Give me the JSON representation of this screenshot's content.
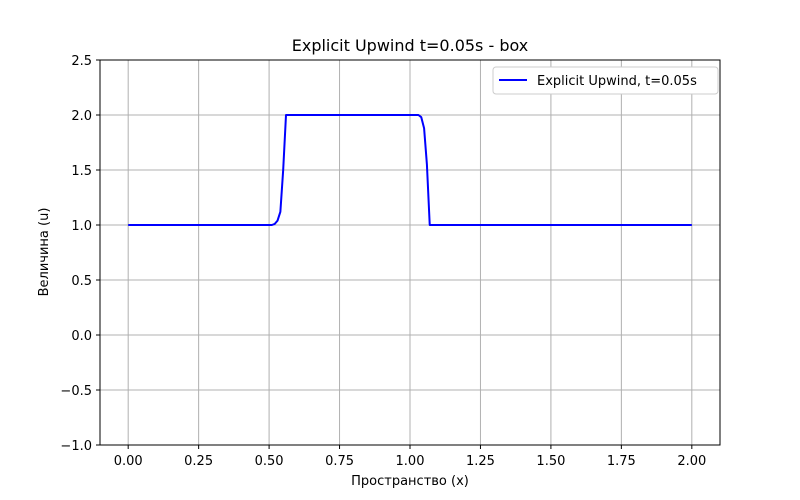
{
  "chart_data": {
    "type": "line",
    "title": "Explicit Upwind t=0.05s - box",
    "xlabel": "Пространство (x)",
    "ylabel": "Величина (u)",
    "xlim": [
      -0.1,
      2.1
    ],
    "ylim": [
      -1.0,
      2.5
    ],
    "xticks": [
      0.0,
      0.25,
      0.5,
      0.75,
      1.0,
      1.25,
      1.5,
      1.75,
      2.0
    ],
    "xtick_labels": [
      "0.00",
      "0.25",
      "0.50",
      "0.75",
      "1.00",
      "1.25",
      "1.50",
      "1.75",
      "2.00"
    ],
    "yticks": [
      -1.0,
      -0.5,
      0.0,
      0.5,
      1.0,
      1.5,
      2.0,
      2.5
    ],
    "ytick_labels": [
      "−1.0",
      "−0.5",
      "0.0",
      "0.5",
      "1.0",
      "1.5",
      "2.0",
      "2.5"
    ],
    "grid": true,
    "legend_position": "top-right",
    "series": [
      {
        "name": "Explicit Upwind, t=0.05s",
        "color": "#0000ff",
        "x": [
          0.0,
          0.5,
          0.51,
          0.52,
          0.53,
          0.54,
          0.55,
          0.56,
          0.6,
          1.0,
          1.03,
          1.04,
          1.05,
          1.06,
          1.07,
          1.1,
          2.0
        ],
        "y": [
          1.0,
          1.0,
          1.0,
          1.01,
          1.04,
          1.12,
          1.5,
          2.0,
          2.0,
          2.0,
          2.0,
          1.98,
          1.88,
          1.55,
          1.0,
          1.0,
          1.0
        ]
      }
    ]
  }
}
